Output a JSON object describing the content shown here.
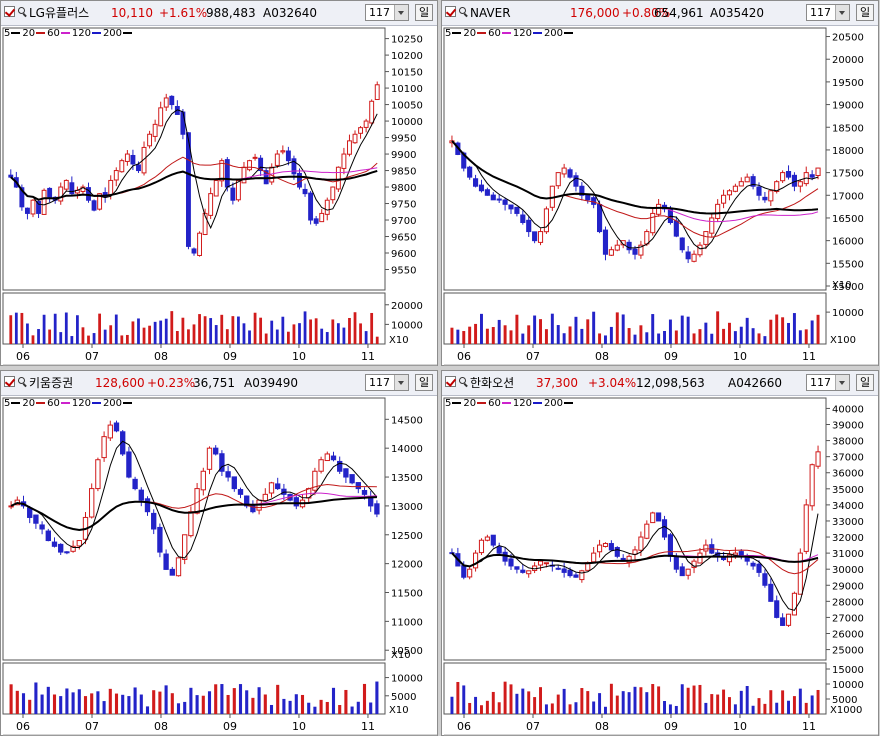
{
  "colors": {
    "up": "#d11b1b",
    "down": "#2323c8",
    "ma5": "#000000",
    "ma20": "#c01818",
    "ma60": "#cc22cc",
    "ma120": "#1a1ac8",
    "ma200": "#000000"
  },
  "panels": [
    {
      "name": "LG유플러스",
      "price": "10,110",
      "change": "+1.61%",
      "volume": "988,483",
      "code": "A032640",
      "period": "117",
      "period_unit": "일",
      "legend": [
        "5",
        "20",
        "60",
        "120",
        "200"
      ],
      "chart_data": {
        "type": "candlestick",
        "price_ticks": [
          "10250",
          "10200",
          "10150",
          "10100",
          "10050",
          "10000",
          "9950",
          "9900",
          "9850",
          "9800",
          "9750",
          "9700",
          "9650",
          "9600",
          "9550"
        ],
        "price_min": 9500,
        "price_max": 10270,
        "x_labels": [
          "06",
          "07",
          "08",
          "09",
          "10",
          "11"
        ],
        "volume_ticks": [
          "20000",
          "10000"
        ],
        "volume_unit": "X10",
        "volume_max": 26000,
        "closes": [
          9830,
          9800,
          9740,
          9720,
          9760,
          9720,
          9790,
          9770,
          9760,
          9800,
          9820,
          9780,
          9790,
          9800,
          9760,
          9730,
          9780,
          9770,
          9820,
          9850,
          9880,
          9900,
          9870,
          9850,
          9920,
          9960,
          9990,
          10040,
          10070,
          10050,
          10020,
          9960,
          9620,
          9600,
          9660,
          9720,
          9780,
          9820,
          9880,
          9800,
          9760,
          9820,
          9860,
          9880,
          9890,
          9850,
          9810,
          9860,
          9900,
          9910,
          9880,
          9840,
          9800,
          9780,
          9700,
          9690,
          9720,
          9760,
          9800,
          9860,
          9900,
          9940,
          9960,
          9980,
          10000,
          10060,
          10110
        ]
      }
    },
    {
      "name": "NAVER",
      "price": "176,000",
      "change": "+0.80%",
      "volume": "654,961",
      "code": "A035420",
      "period": "117",
      "period_unit": "일",
      "legend": [
        "5",
        "20",
        "60",
        "120",
        "200"
      ],
      "chart_data": {
        "type": "candlestick",
        "price_ticks": [
          "20500",
          "20000",
          "19500",
          "19000",
          "18500",
          "18000",
          "17500",
          "17000",
          "16500",
          "16000",
          "15500",
          "15000"
        ],
        "price_min": 15000,
        "price_max": 20600,
        "price_unit": "X10",
        "x_labels": [
          "06",
          "07",
          "08",
          "09",
          "10",
          "11"
        ],
        "volume_ticks": [
          "10000"
        ],
        "volume_unit": "X100",
        "volume_max": 16000,
        "closes": [
          18200,
          17900,
          17600,
          17400,
          17200,
          17100,
          17000,
          16900,
          16900,
          16800,
          16700,
          16600,
          16400,
          16200,
          16000,
          16200,
          16700,
          17200,
          17500,
          17600,
          17400,
          17200,
          17000,
          16900,
          16800,
          16200,
          15700,
          15800,
          15900,
          16000,
          15800,
          15700,
          15900,
          16200,
          16600,
          16800,
          16700,
          16400,
          16100,
          15800,
          15600,
          15700,
          15900,
          16200,
          16500,
          16800,
          17000,
          17100,
          17200,
          17300,
          17400,
          17200,
          17000,
          16900,
          17100,
          17300,
          17500,
          17400,
          17200,
          17300,
          17500,
          17400,
          17600
        ]
      }
    },
    {
      "name": "키움증권",
      "price": "128,600",
      "change": "+0.23%",
      "volume": "36,751",
      "code": "A039490",
      "period": "117",
      "period_unit": "일",
      "legend": [
        "5",
        "20",
        "60",
        "120",
        "200"
      ],
      "chart_data": {
        "type": "candlestick",
        "price_ticks": [
          "14500",
          "14000",
          "13500",
          "13000",
          "12500",
          "12000",
          "11500",
          "11000",
          "10500"
        ],
        "price_min": 10400,
        "price_max": 14800,
        "price_unit": "X10",
        "x_labels": [
          "06",
          "07",
          "08",
          "09",
          "10",
          "11"
        ],
        "volume_ticks": [
          "10000",
          "5000"
        ],
        "volume_unit": "X10",
        "volume_max": 14000,
        "closes": [
          13000,
          13100,
          13000,
          12800,
          12700,
          12600,
          12400,
          12300,
          12200,
          12200,
          12300,
          12400,
          12800,
          13300,
          13800,
          14200,
          14400,
          14300,
          13900,
          13500,
          13300,
          13100,
          12900,
          12600,
          12200,
          11900,
          11800,
          12100,
          12500,
          12900,
          13300,
          13600,
          14000,
          13900,
          13600,
          13500,
          13300,
          13200,
          13000,
          12900,
          13100,
          13200,
          13400,
          13300,
          13200,
          13100,
          13000,
          13100,
          13300,
          13600,
          13800,
          13900,
          13800,
          13600,
          13500,
          13400,
          13300,
          13200,
          13000,
          12860
        ]
      }
    },
    {
      "name": "한화오션",
      "price": "37,300",
      "change": "+3.04%",
      "volume": "12,098,563",
      "code": "A042660",
      "period": "117",
      "period_unit": "일",
      "legend": [
        "5",
        "20",
        "60",
        "120",
        "200"
      ],
      "chart_data": {
        "type": "candlestick",
        "price_ticks": [
          "40000",
          "39000",
          "38000",
          "37000",
          "36000",
          "35000",
          "34000",
          "33000",
          "32000",
          "31000",
          "30000",
          "29000",
          "28000",
          "27000",
          "26000",
          "25000"
        ],
        "price_min": 24600,
        "price_max": 40400,
        "x_labels": [
          "06",
          "07",
          "08",
          "09",
          "10",
          "11"
        ],
        "volume_ticks": [
          "15000",
          "10000",
          "5000"
        ],
        "volume_unit": "X1000",
        "volume_max": 17000,
        "closes": [
          31000,
          30200,
          29500,
          30000,
          31000,
          31800,
          32000,
          31500,
          31000,
          30500,
          30200,
          30000,
          29800,
          29900,
          30200,
          30500,
          30400,
          30200,
          30000,
          29800,
          29600,
          29500,
          29900,
          30400,
          31000,
          31500,
          31600,
          31200,
          30800,
          30500,
          30800,
          31200,
          32000,
          32800,
          33500,
          33000,
          32000,
          30800,
          30000,
          29600,
          30000,
          30500,
          31000,
          31500,
          31000,
          30800,
          30600,
          30900,
          31000,
          30800,
          30500,
          30200,
          29800,
          29000,
          28000,
          27000,
          26500,
          27200,
          28500,
          31000,
          34000,
          36500,
          37300
        ]
      }
    }
  ]
}
